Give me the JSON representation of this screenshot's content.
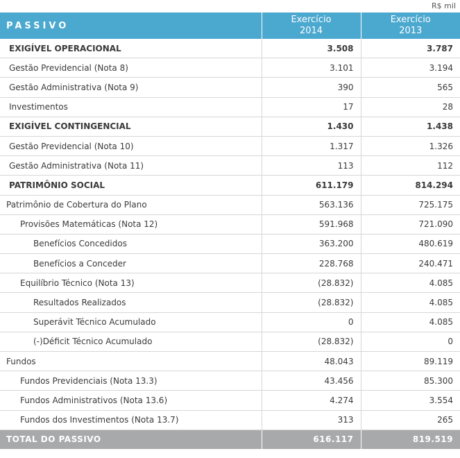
{
  "unit": "R$ mil",
  "header": {
    "title": "PASSIVO",
    "col1_line1": "Exercício",
    "col1_line2": "2014",
    "col2_line1": "Exercício",
    "col2_line2": "2013"
  },
  "rows": [
    {
      "label": "EXIGÍVEL OPERACIONAL",
      "v2014": "3.508",
      "v2013": "3.787"
    },
    {
      "label": "Gestão Previdencial (Nota 8)",
      "v2014": "3.101",
      "v2013": "3.194"
    },
    {
      "label": "Gestão Administrativa (Nota 9)",
      "v2014": "390",
      "v2013": "565"
    },
    {
      "label": "Investimentos",
      "v2014": "17",
      "v2013": "28"
    },
    {
      "label": "EXIGÍVEL CONTINGENCIAL",
      "v2014": "1.430",
      "v2013": "1.438"
    },
    {
      "label": "Gestão Previdencial (Nota 10)",
      "v2014": "1.317",
      "v2013": "1.326"
    },
    {
      "label": "Gestão Administrativa (Nota 11)",
      "v2014": "113",
      "v2013": "112"
    },
    {
      "label": "PATRIMÔNIO SOCIAL",
      "v2014": "611.179",
      "v2013": "814.294"
    },
    {
      "label": "Patrimônio de Cobertura do Plano",
      "v2014": "563.136",
      "v2013": "725.175"
    },
    {
      "label": "Provisões Matemáticas (Nota 12)",
      "v2014": "591.968",
      "v2013": "721.090"
    },
    {
      "label": "Benefícios Concedidos",
      "v2014": "363.200",
      "v2013": "480.619"
    },
    {
      "label": "Benefícios a Conceder",
      "v2014": "228.768",
      "v2013": "240.471"
    },
    {
      "label": "Equilíbrio Técnico (Nota 13)",
      "v2014": "(28.832)",
      "v2013": "4.085"
    },
    {
      "label": "Resultados Realizados",
      "v2014": "(28.832)",
      "v2013": "4.085"
    },
    {
      "label": "Superávit Técnico Acumulado",
      "v2014": "0",
      "v2013": "4.085"
    },
    {
      "label": "(-)Déficit Técnico Acumulado",
      "v2014": "(28.832)",
      "v2013": "0"
    },
    {
      "label": "Fundos",
      "v2014": "48.043",
      "v2013": "89.119"
    },
    {
      "label": "Fundos Previdenciais (Nota 13.3)",
      "v2014": "43.456",
      "v2013": "85.300"
    },
    {
      "label": "Fundos Administrativos (Nota 13.6)",
      "v2014": "4.274",
      "v2013": "3.554"
    },
    {
      "label": "Fundos dos Investimentos (Nota 13.7)",
      "v2014": "313",
      "v2013": "265"
    }
  ],
  "total": {
    "label": "TOTAL DO PASSIVO",
    "v2014": "616.117",
    "v2013": "819.519"
  }
}
